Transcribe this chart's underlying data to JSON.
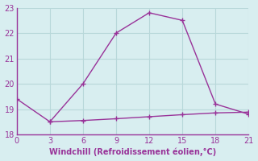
{
  "line1_x": [
    0,
    3,
    6,
    9,
    12,
    15,
    18,
    21
  ],
  "line1_y": [
    19.4,
    18.5,
    20.0,
    22.0,
    22.8,
    22.5,
    19.2,
    18.8
  ],
  "line2_x": [
    3,
    6,
    9,
    12,
    15,
    18,
    21
  ],
  "line2_y": [
    18.5,
    18.55,
    18.62,
    18.7,
    18.78,
    18.85,
    18.88
  ],
  "line_color": "#993399",
  "bg_color": "#d8eef0",
  "grid_color": "#b8d8da",
  "spine_color": "#993399",
  "xlabel": "Windchill (Refroidissement éolien,°C)",
  "xlim": [
    0,
    21
  ],
  "ylim": [
    18,
    23
  ],
  "xticks": [
    0,
    3,
    6,
    9,
    12,
    15,
    18,
    21
  ],
  "yticks": [
    18,
    19,
    20,
    21,
    22,
    23
  ],
  "xlabel_fontsize": 7,
  "tick_fontsize": 7,
  "tick_color": "#993399"
}
